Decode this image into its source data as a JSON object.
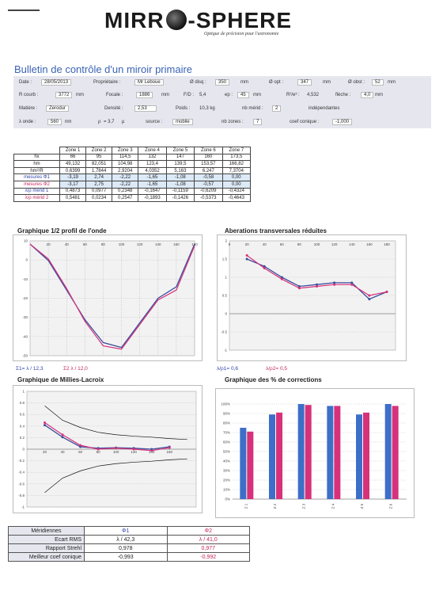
{
  "header": {
    "logo_left": "MIRR",
    "logo_right": "-SPHERE",
    "tagline": "Optique de précision pour l'astronomie"
  },
  "title": "Bulletin de contrôle d'un miroir primaire",
  "info": {
    "row1": [
      {
        "label": "Date :",
        "value": "28/05/2013"
      },
      {
        "label": "Propriétaire :",
        "value": "Mr Leboue"
      },
      {
        "label": "Ø disq :",
        "value": "350",
        "unit": "mm"
      },
      {
        "label": "Ø opt :",
        "value": "347",
        "unit": "mm"
      },
      {
        "label": "Ø obst :",
        "value": "52",
        "unit": "mm"
      }
    ],
    "row2": [
      {
        "label": "R courb :",
        "value": "3772",
        "unit": "mm"
      },
      {
        "label": "Focale :",
        "value": "1886",
        "unit": "mm"
      },
      {
        "label": "F/D :",
        "value": "5,4"
      },
      {
        "label": "ep :",
        "value": "45",
        "unit": "mm"
      },
      {
        "label": "R²/e³ :",
        "value": "4,532"
      },
      {
        "label": "flèche :",
        "value": "4,0",
        "unit": "mm"
      }
    ],
    "row3": [
      {
        "label": "Matière :",
        "value": "Zerodur"
      },
      {
        "label": "Densité :",
        "value": "2,53"
      },
      {
        "label": "Poids :",
        "value": "10,3 kg"
      },
      {
        "label": "nb mérid :",
        "value": "2"
      },
      {
        "extra": "indépendantes"
      }
    ],
    "row4": [
      {
        "label": "λ onde :",
        "value": "560",
        "unit": "nm"
      },
      {
        "label": "ρ",
        "value": "= 3,7",
        "unit": "μ"
      },
      {
        "label": "source :",
        "value": "mobile"
      },
      {
        "label": "nb zones :",
        "value": "7"
      },
      {
        "label": "coef conique :",
        "value": "-1,000"
      }
    ]
  },
  "zones_table": {
    "headers": [
      "Zone 1",
      "Zone 2",
      "Zone 3",
      "Zone 4",
      "Zone 5",
      "Zone 6",
      "Zone 7"
    ],
    "rows": [
      {
        "label": "hx",
        "cls": "",
        "values": [
          "66",
          "95",
          "114,5",
          "132",
          "147",
          "160",
          "173,5"
        ]
      },
      {
        "label": "hm",
        "cls": "",
        "values": [
          "49,132",
          "82,051",
          "104,98",
          "123,4",
          "139,5",
          "153,57",
          "166,82"
        ]
      },
      {
        "label": "hm²/R",
        "cls": "",
        "values": [
          "0,6399",
          "1,7844",
          "2,9204",
          "4,0352",
          "5,163",
          "6,247",
          "7,3704"
        ]
      },
      {
        "label": "mesures Φ1",
        "cls": "blue",
        "values": [
          "-3,19",
          "2,74",
          "-2,22",
          "-1,65",
          "-1,08",
          "-0,58",
          "0,00"
        ]
      },
      {
        "label": "mesures Φ2",
        "cls": "red",
        "values": [
          "-3,17",
          "2,75",
          "-2,22",
          "-1,65",
          "-1,08",
          "-0,57",
          "0,00"
        ]
      },
      {
        "label": "λ/ρ mérid 1",
        "cls": "blue",
        "values": [
          "0,4873",
          "0,0977",
          "0,2348",
          "-0,1647",
          "-0,1159",
          "-0,6209",
          "-0,4324"
        ]
      },
      {
        "label": "λ/ρ mérid 2",
        "cls": "red",
        "values": [
          "0,5481",
          "0,0234",
          "0,2547",
          "-0,1893",
          "-0,1426",
          "-0,5373",
          "-0,4643"
        ]
      }
    ]
  },
  "charts": {
    "wavefront": {
      "title": "Graphique 1/2 profil de l'onde",
      "sig1": "Σ1= λ / 12,3",
      "sig2": "Σ2   λ / 12,0"
    },
    "aberrations": {
      "title": "Aberations transversales réduites",
      "l1": "λ/ρ1= 0,6",
      "l2": "λ/ρ2= 0,5"
    },
    "millies": {
      "title": "Graphique de Millies-Lacroix"
    },
    "corrections": {
      "title": "Graphique des % de corrections"
    }
  },
  "chart_data": [
    {
      "type": "line",
      "title": "Graphique 1/2 profil de l'onde",
      "x": [
        0,
        20,
        40,
        60,
        80,
        100,
        120,
        140,
        160,
        180
      ],
      "series": [
        {
          "values": [
            18,
            8,
            -10,
            -28,
            -42,
            -45,
            -30,
            -15,
            -8,
            18
          ]
        },
        {
          "values": [
            18,
            9,
            -9,
            -29,
            -44,
            -46,
            -31,
            -16,
            -10,
            17
          ]
        }
      ],
      "ylim": [
        -50,
        20
      ],
      "xticks": [
        "20",
        "40",
        "60",
        "80",
        "100",
        "120",
        "140",
        "160",
        "180"
      ],
      "yticks": [
        "10",
        "0",
        "-10",
        "-20",
        "-30",
        "-40",
        "-50"
      ]
    },
    {
      "type": "line",
      "title": "Aberations transversales réduites",
      "x": [
        20,
        40,
        60,
        80,
        100,
        120,
        140,
        160,
        180
      ],
      "series": [
        {
          "values": [
            1.5,
            1.3,
            1.0,
            0.75,
            0.8,
            0.85,
            0.85,
            0.4,
            0.6
          ]
        },
        {
          "values": [
            1.6,
            1.25,
            0.95,
            0.7,
            0.75,
            0.8,
            0.8,
            0.5,
            0.6
          ]
        }
      ],
      "ylim": [
        -1,
        2
      ],
      "yticks": [
        "2",
        "1.5",
        "1",
        "0.5",
        "0",
        "-0.5",
        "-1"
      ],
      "xticks": [
        "0",
        "20",
        "40",
        "60",
        "80",
        "100",
        "120",
        "140",
        "160",
        "180"
      ]
    },
    {
      "type": "line",
      "title": "Graphique de Millies-Lacroix",
      "x": [
        20,
        40,
        60,
        80,
        100,
        120,
        140,
        160
      ],
      "series": [
        {
          "values": [
            0.5,
            0.25,
            0.05,
            0.02,
            0.03,
            0.02,
            0.0,
            0.05
          ]
        },
        {
          "values": [
            0.55,
            0.3,
            0.08,
            0.0,
            0.02,
            0.0,
            -0.03,
            0.03
          ]
        }
      ],
      "ylim": [
        -1.2,
        1.2
      ],
      "yticks": [
        "1",
        "0.8",
        "0.6",
        "0.4",
        "0.2",
        "0",
        "-0.2",
        "-0.4",
        "-0.6",
        "-0.8",
        "-1"
      ],
      "xticks": [
        "20",
        "40",
        "60",
        "80",
        "100",
        "120",
        "140",
        "160"
      ]
    },
    {
      "type": "bar",
      "title": "Graphique des % de corrections",
      "categories": [
        "Z 1",
        "Z 2",
        "Z 3",
        "Z 4",
        "Z 5",
        "Z 6"
      ],
      "series": [
        {
          "color": "#3d6ec8",
          "values": [
            75,
            89,
            100,
            98,
            89,
            100
          ]
        },
        {
          "color": "#d6317a",
          "values": [
            71,
            91,
            99,
            98,
            91,
            98
          ]
        }
      ],
      "ylim": [
        0,
        110
      ],
      "yticks": [
        "100%",
        "90%",
        "80%",
        "70%",
        "60%",
        "50%",
        "40%",
        "30%",
        "20%",
        "10%",
        "0%"
      ]
    }
  ],
  "bottom_table": {
    "headers": [
      "Méridiennes",
      "Φ1",
      "Φ2"
    ],
    "rows": [
      {
        "label": "Ecart RMS",
        "v1": "λ / 42,3",
        "v2": "λ / 41,0"
      },
      {
        "label": "Rapport Strehl",
        "v1": "0,978",
        "v2": "0,977"
      },
      {
        "label": "Meilleur coef conique",
        "v1": "-0,993",
        "v2": "-0,992"
      }
    ]
  },
  "colors": {
    "blue": "#3a4f9e",
    "pink": "#d6317a",
    "title_blue": "#3a63b5"
  }
}
